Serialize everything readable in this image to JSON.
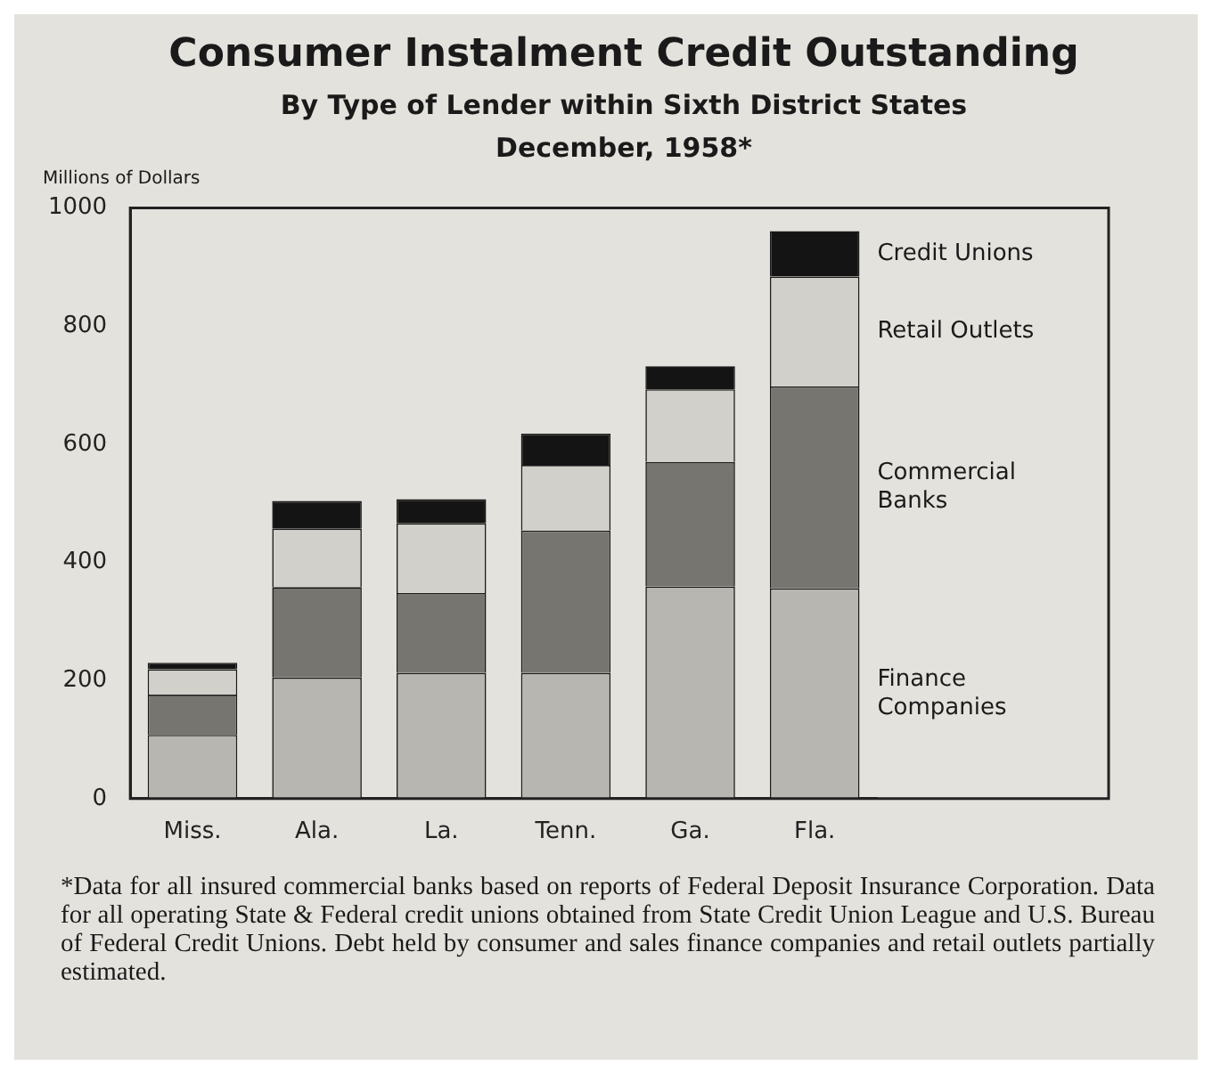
{
  "chart_data": {
    "type": "bar",
    "title": "Consumer Instalment Credit Outstanding",
    "subtitle": "By Type of Lender within Sixth District States\nDecember, 1958*",
    "ylabel": "Millions of Dollars",
    "categories": [
      "Miss.",
      "Ala.",
      "La.",
      "Tenn.",
      "Ga.",
      "Fla."
    ],
    "stacked": true,
    "series": [
      {
        "name": "Finance Companies",
        "color": "#b8b6b0",
        "values": [
          108,
          205,
          213,
          213,
          359,
          356
        ]
      },
      {
        "name": "Commercial Banks",
        "color": "#77756f",
        "values": [
          68,
          153,
          135,
          241,
          211,
          342
        ]
      },
      {
        "name": "Retail Outlets",
        "color": "#d2d0ca",
        "values": [
          43,
          99,
          118,
          111,
          123,
          186
        ]
      },
      {
        "name": "Credit Unions",
        "color": "#141414",
        "values": [
          11,
          47,
          41,
          53,
          39,
          77
        ]
      }
    ],
    "ylim": [
      0,
      1000
    ],
    "yticks": [
      0,
      200,
      400,
      600,
      800,
      1000
    ],
    "grid": false,
    "annotations": [
      "*Data for all insured commercial banks based on reports of Federal Deposit Insurance Corporation. Data for all operating State & Federal credit unions obtained from State Credit Union League and U.S. Bureau of Federal Credit Unions. Debt held by consumer and sales finance companies and retail outlets partially estimated."
    ]
  }
}
